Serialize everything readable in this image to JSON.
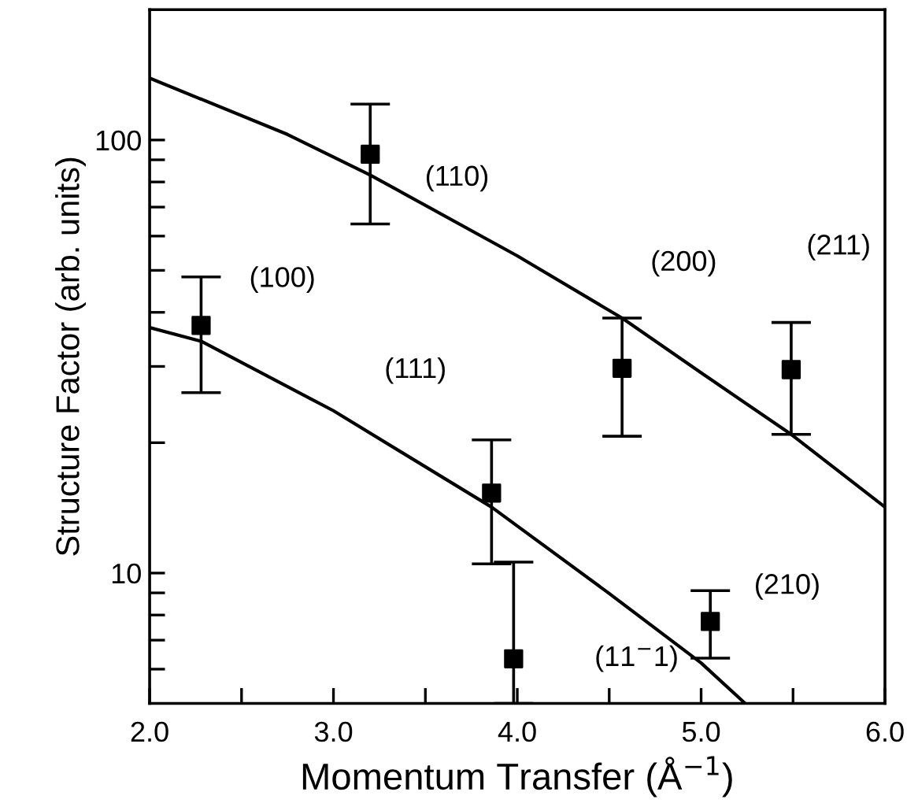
{
  "chart_data": {
    "type": "scatter",
    "xlabel": "Momentum Transfer (Å$^{−1}$)",
    "ylabel": "Structure Factor (arb. units)",
    "log": "y",
    "xlim": [
      2.0,
      6.0
    ],
    "xticks": [
      {
        "value": 2.0,
        "label": "2.0"
      },
      {
        "value": 2.5,
        "label": null
      },
      {
        "value": 3.0,
        "label": "3.0"
      },
      {
        "value": 3.5,
        "label": null
      },
      {
        "value": 4.0,
        "label": "4.0"
      },
      {
        "value": 4.5,
        "label": null
      },
      {
        "value": 5.0,
        "label": "5.0"
      },
      {
        "value": 5.5,
        "label": null
      },
      {
        "value": 6.0,
        "label": "6.0"
      }
    ],
    "ylim": [
      5,
      200
    ],
    "yticks": [
      {
        "value": 6,
        "label": null
      },
      {
        "value": 7,
        "label": null
      },
      {
        "value": 8,
        "label": null
      },
      {
        "value": 9,
        "label": null
      },
      10,
      {
        "value": 20,
        "label": null
      },
      {
        "value": 30,
        "label": null
      },
      {
        "value": 40,
        "label": null
      },
      {
        "value": 50,
        "label": null
      },
      {
        "value": 60,
        "label": null
      },
      {
        "value": 70,
        "label": null
      },
      {
        "value": 80,
        "label": null
      },
      {
        "value": 90,
        "label": null
      },
      100
    ],
    "grid": false,
    "legend": false,
    "series": [
      {
        "color": "#000000",
        "marker": "square",
        "x": [
          2.28,
          3.2,
          3.86,
          3.98,
          4.57,
          5.05,
          5.49
        ],
        "values": [
          37.3,
          92.7,
          15.3,
          6.34,
          29.7,
          7.73,
          29.5
        ],
        "errors": [
          [
            26.1,
            48.3
          ],
          [
            64,
            121
          ],
          [
            10.5,
            20.3
          ],
          [
            5.0,
            10.6
          ],
          [
            20.7,
            38.8
          ],
          [
            6.36,
            9.11
          ],
          [
            20.9,
            37.9
          ]
        ]
      },
      {
        "type": "line",
        "color": "#000000",
        "line_style": "solid",
        "x": [
          2.0,
          2.75,
          3.2,
          4.0,
          4.57,
          5.0,
          5.49,
          6.0
        ],
        "values": [
          139,
          103,
          83,
          54,
          38.8,
          29.0,
          20.9,
          14.2
        ]
      },
      {
        "type": "line",
        "color": "#000000",
        "line_style": "solid",
        "x": [
          2.0,
          2.28,
          3.0,
          3.86,
          4.5,
          5.0,
          5.24
        ],
        "values": [
          36.9,
          34.3,
          23.7,
          14.2,
          8.97,
          6.2,
          5.0
        ]
      }
    ],
    "annotations": [
      "(100)",
      "(110)",
      "(111)",
      "(11$^{−}$1)",
      "(200)",
      "(210)",
      "(211)"
    ]
  }
}
